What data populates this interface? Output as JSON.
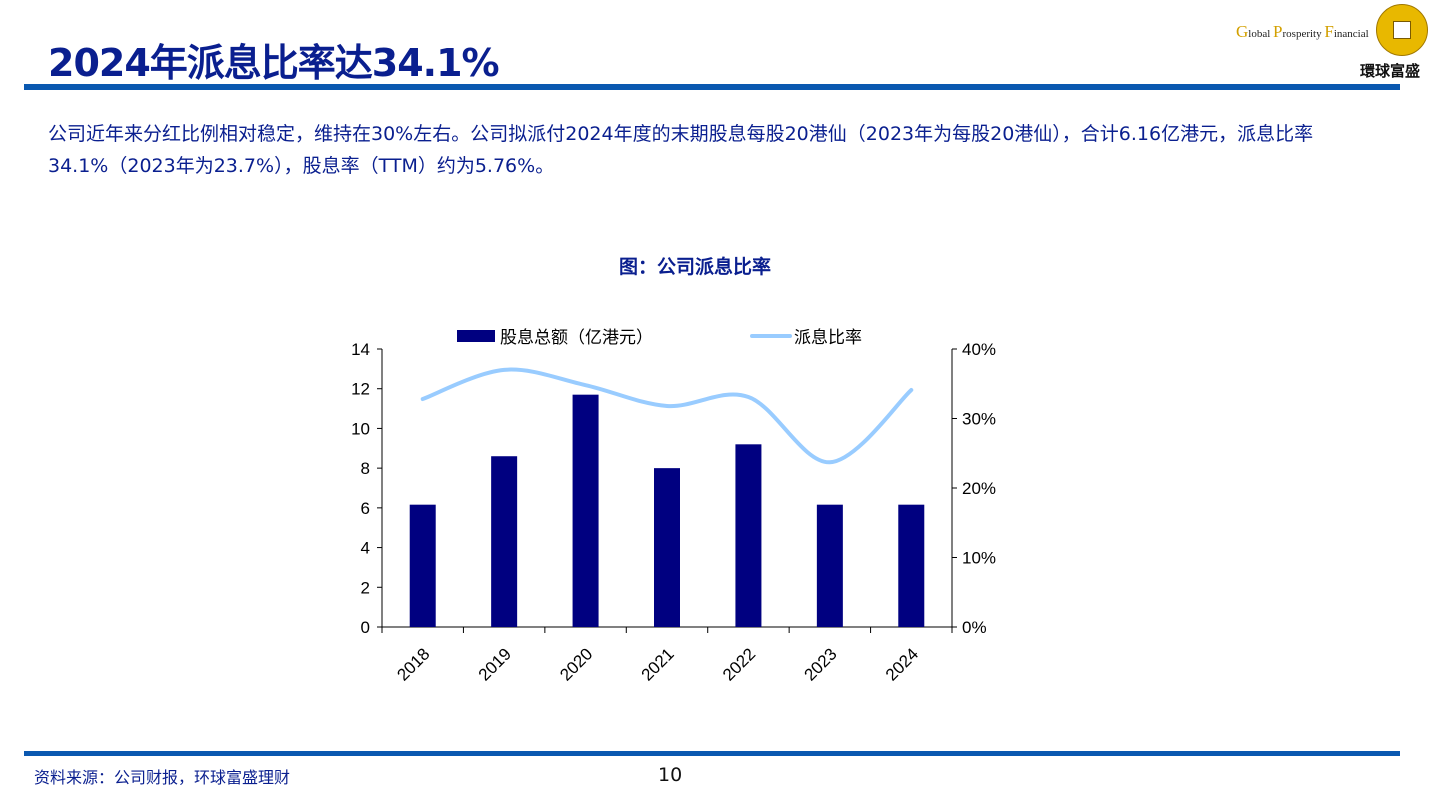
{
  "title": "2024年派息比率达34.1%",
  "logo": {
    "en": [
      "G",
      "lobal ",
      "P",
      "rosperity ",
      "F",
      "inancial"
    ],
    "cn": "環球富盛"
  },
  "paragraph": "公司近年来分红比例相对稳定，维持在30%左右。公司拟派付2024年度的末期股息每股20港仙（2023年为每股20港仙），合计6.16亿港元，派息比率34.1%（2023年为23.7%），股息率（TTM）约为5.76%。",
  "chart_title": "图：公司派息比率",
  "source": "资料来源：公司财报，环球富盛理财",
  "page_number": "10",
  "chart_data": {
    "type": "bar+line",
    "categories": [
      "2018",
      "2019",
      "2020",
      "2021",
      "2022",
      "2023",
      "2024"
    ],
    "series": [
      {
        "name": "股息总额（亿港元）",
        "type": "bar",
        "axis": "left",
        "color": "#000080",
        "values": [
          6.16,
          8.6,
          11.7,
          8.0,
          9.2,
          6.16,
          6.16
        ]
      },
      {
        "name": "派息比率",
        "type": "line",
        "axis": "right",
        "color": "#99ccff",
        "values": [
          32.8,
          37.0,
          34.8,
          31.8,
          33.1,
          23.7,
          34.1
        ]
      }
    ],
    "left_axis": {
      "ylim": [
        0,
        14
      ],
      "ticks": [
        "0",
        "2",
        "4",
        "6",
        "8",
        "10",
        "12",
        "14"
      ]
    },
    "right_axis": {
      "ylim": [
        0,
        40
      ],
      "ticks": [
        "0%",
        "10%",
        "20%",
        "30%",
        "40%"
      ]
    },
    "legend": "top",
    "grid": false
  }
}
